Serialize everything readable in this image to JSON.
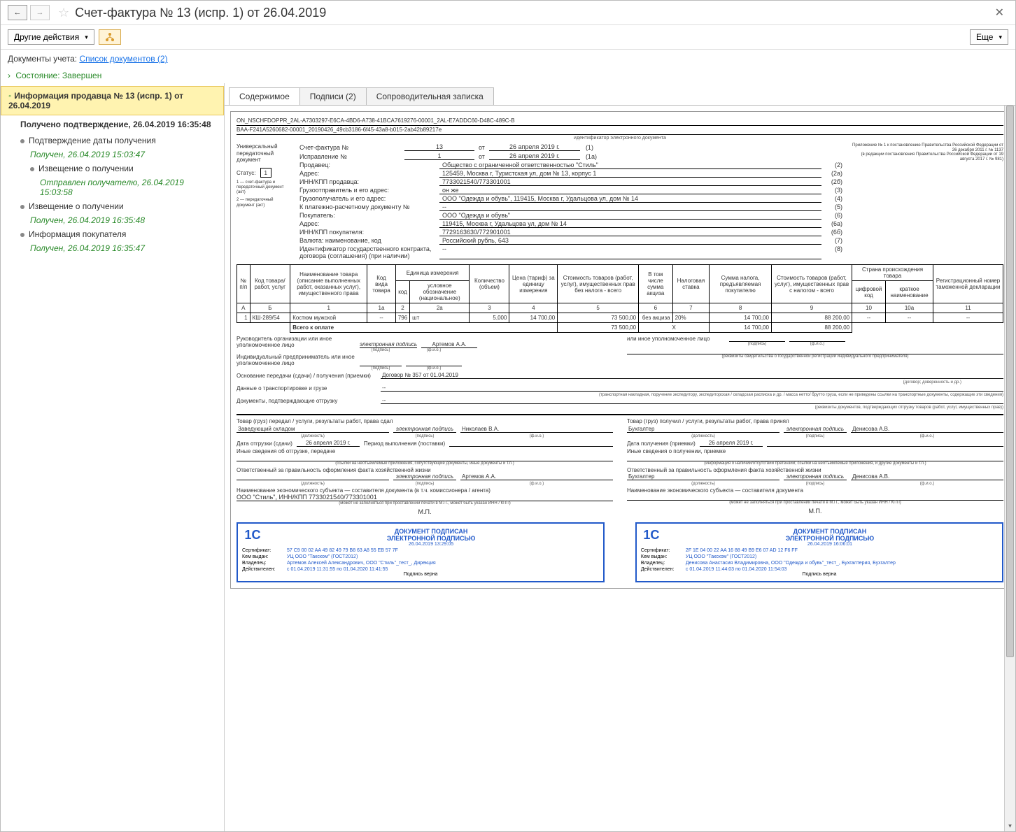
{
  "window": {
    "title": "Счет-фактура № 13 (испр. 1) от 26.04.2019"
  },
  "toolbar": {
    "other_actions": "Другие действия",
    "more": "Еще"
  },
  "docinfo": {
    "label": "Документы учета:",
    "link": "Список документов (2)"
  },
  "state": {
    "label": "Состояние:",
    "value": "Завершен"
  },
  "sidebar": {
    "header": "Информация продавца № 13 (испр. 1) от 26.04.2019",
    "confirm": "Получено подтверждение, 26.04.2019 16:35:48",
    "items": [
      {
        "text": "Подтверждение даты получения",
        "cls": "indent1"
      },
      {
        "text": "Получен, 26.04.2019 15:03:47",
        "cls": "indent2 side-green"
      },
      {
        "text": "Извещение о получении",
        "cls": "indent2"
      },
      {
        "text": "Отправлен получателю, 26.04.2019 15:03:58",
        "cls": "indent3 side-green"
      },
      {
        "text": "Извещение о получении",
        "cls": "indent1"
      },
      {
        "text": "Получен, 26.04.2019 16:35:48",
        "cls": "indent2 side-green"
      },
      {
        "text": "Информация покупателя",
        "cls": "indent1"
      },
      {
        "text": "Получен, 26.04.2019 16:35:47",
        "cls": "indent2 side-green"
      }
    ]
  },
  "tabs": {
    "t1": "Содержимое",
    "t2": "Подписи (2)",
    "t3": "Сопроводительная записка"
  },
  "doc": {
    "file_id1": "ON_NSCHFDOPPR_2AL-A7303297-E6CA-4BD6-A738-41BCA7619276-00001_2AL-E7ADDC60-D48C-489C-B",
    "file_id2": "BAA-F241A5260682-00001_20190426_49cb3186-6f45-43a8-b015-2ab42b89217e",
    "file_id_lbl": "идентификатор электронного документа",
    "univ": "Универсальный передаточный документ",
    "status_lbl": "Статус:",
    "status_val": "1",
    "status_note1": "1 — счет-фактура и передаточный документ (акт)",
    "status_note2": "2 — передаточный документ (акт)",
    "app_line1": "Приложение № 1 к постановлению Правительства Российской Федерации от 26 декабря 2011 г. № 1137",
    "app_line2": "(в редакции постановления Правительства Российской Федерации от 19 августа 2017 г. № 981)",
    "inv_lbl": "Счет-фактура №",
    "inv_num": "13",
    "inv_from": "от",
    "inv_date": "26 апреля 2019 г.",
    "inv_p": "(1)",
    "corr_lbl": "Исправление №",
    "corr_num": "1",
    "corr_date": "26 апреля 2019 г.",
    "corr_p": "(1а)",
    "fields": [
      {
        "lbl": "Продавец:",
        "val": "Общество с ограниченной ответственностью \"Стиль\"",
        "n": "(2)"
      },
      {
        "lbl": "Адрес:",
        "val": "125459, Москва г, Туристская ул, дом № 13, корпус 1",
        "n": "(2а)"
      },
      {
        "lbl": "ИНН/КПП продавца:",
        "val": "7733021540/773301001",
        "n": "(2б)"
      },
      {
        "lbl": "Грузоотправитель и его адрес:",
        "val": "он же",
        "n": "(3)"
      },
      {
        "lbl": "Грузополучатель и его адрес:",
        "val": "ООО \"Одежда и обувь\", 119415, Москва г, Удальцова ул, дом № 14",
        "n": "(4)"
      },
      {
        "lbl": "К платежно-расчетному документу №",
        "val": "--",
        "n": "(5)"
      },
      {
        "lbl": "Покупатель:",
        "val": "ООО \"Одежда и обувь\"",
        "n": "(6)"
      },
      {
        "lbl": "Адрес:",
        "val": "119415, Москва г, Удальцова ул, дом № 14",
        "n": "(6а)"
      },
      {
        "lbl": "ИНН/КПП покупателя:",
        "val": "7729163630/772901001",
        "n": "(6б)"
      },
      {
        "lbl": "Валюта: наименование, код",
        "val": "Российский рубль, 643",
        "n": "(7)"
      },
      {
        "lbl": "Идентификатор государственного контракта, договора (соглашения) (при наличии)",
        "val": "--",
        "n": "(8)"
      }
    ],
    "th": {
      "c0": "№ п/п",
      "cA": "Код товара/ работ, услуг",
      "c1": "Наименование товара (описание выполненных работ, оказанных услуг), имущественного права",
      "c1a": "Код вида товара",
      "c2": "Единица измерения",
      "c2a": "код",
      "c2b": "условное обозначение (национальное)",
      "c3": "Количество (объем)",
      "c4": "Цена (тариф) за единицу измерения",
      "c5": "Стоимость товаров (работ, услуг), имущественных прав без налога - всего",
      "c6": "В том числе сумма акциза",
      "c7": "Налоговая ставка",
      "c8": "Сумма налога, предъявляемая покупателю",
      "c9": "Стоимость товаров (работ, услуг), имущественных прав с налогом - всего",
      "c10": "Страна происхождения товара",
      "c10a": "цифровой код",
      "c10b": "краткое наименование",
      "c11": "Регистрационный номер таможенной декларации"
    },
    "nh": {
      "a": "А",
      "b": "Б",
      "n1": "1",
      "n1a": "1а",
      "n2": "2",
      "n2a": "2а",
      "n3": "3",
      "n4": "4",
      "n5": "5",
      "n6": "6",
      "n7": "7",
      "n8": "8",
      "n9": "9",
      "n10": "10",
      "n10a": "10а",
      "n11": "11"
    },
    "row": {
      "n": "1",
      "code": "КШ-289/54",
      "name": "Костюм мужской",
      "vid": "--",
      "ucode": "796",
      "uname": "шт",
      "qty": "5,000",
      "price": "14 700,00",
      "sum_no_tax": "73 500,00",
      "excise": "без акциза",
      "rate": "20%",
      "tax": "14 700,00",
      "sum_tax": "88 200,00",
      "country_code": "--",
      "country_name": "--",
      "gtd": "--"
    },
    "total": {
      "lbl": "Всего к оплате",
      "sum_no_tax": "73 500,00",
      "x": "Х",
      "tax": "14 700,00",
      "sum_tax": "88 200,00"
    },
    "sig": {
      "org_head": "Руководитель организации или иное уполномоченное лицо",
      "epod": "электронная подпись",
      "podpis": "(подпись)",
      "fio": "(ф.и.о.)",
      "artemov": "Артемов А.А.",
      "auth": "или иное уполномоченное лицо",
      "ip": "Индивидуальный предприниматель или иное уполномоченное лицо",
      "ip_note": "(реквизиты свидетельства о государственной регистрации индивидуального предпринимателя)"
    },
    "transfer": {
      "basis_lbl": "Основание передачи (сдачи) / получения (приемки)",
      "basis_val": "Договор № 357 от 01.04.2019",
      "basis_sub": "(договор; доверенность и др.)",
      "transport_lbl": "Данные о транспортировке и грузе",
      "transport_val": "--",
      "transport_sub": "(транспортная накладная, поручение экспедитору, экспедиторская / складская расписка и др. / масса нетто/ брутто груза, если не приведены ссылки на транспортные документы, содержащие эти сведения)",
      "ship_docs_lbl": "Документы, подтверждающие отгрузку",
      "ship_docs_val": "--",
      "ship_docs_sub": "(реквизиты документов, подтверждающих отгрузку товаров (работ, услуг, имущественных прав))"
    },
    "left_col": {
      "h": "Товар (груз) передал / услуги, результаты работ, права сдал",
      "pos": "Заведующий складом",
      "name": "Николаев В.А.",
      "ship_date_lbl": "Дата отгрузки (сдачи)",
      "ship_date": "26 апреля 2019 г.",
      "period_lbl": "Период выполнения (поставки)",
      "other_lbl": "Иные сведения об отгрузке, передаче",
      "other_sub": "(ссылки на неотъемлемые приложения, сопутствующие документы, иные документы и т.п.)",
      "resp_lbl": "Ответственный за правильность оформления факта хозяйственной жизни",
      "resp_name": "Артемов А.А.",
      "pos_sub": "(должность)",
      "subj_lbl": "Наименование экономического субъекта — составителя документа (в т.ч. комиссионера / агента)",
      "subj_val": "ООО \"Стиль\", ИНН/КПП 7733021540/773301001",
      "subj_sub": "(может не заполняться при проставлении печати в М.П., может быть указан ИНН / КПП)",
      "mp": "М.П."
    },
    "right_col": {
      "h": "Товар (груз) получил / услуги, результаты работ, права принял",
      "pos": "Бухгалтер",
      "name": "Денисова А.В.",
      "recv_date_lbl": "Дата получения (приемки)",
      "recv_date": "26 апреля 2019 г.",
      "other_lbl": "Иные сведения о получении, приемке",
      "other_sub": "(информация о наличии/отсутствии претензии; ссылки на неотъемлемые приложения, и другие документы и т.п.)",
      "resp_lbl": "Ответственный за правильность оформления факта хозяйственной жизни",
      "resp_name": "Денисова А.В.",
      "subj_lbl": "Наименование экономического субъекта — составителя документа",
      "subj_sub": "(может не заполняться при проставлении печати в М.П., может быть указан ИНН / КПП)",
      "mp": "М.П."
    },
    "stamp_l": {
      "title1": "ДОКУМЕНТ ПОДПИСАН",
      "title2": "ЭЛЕКТРОННОЙ ПОДПИСЬЮ",
      "date": "26.04.2019 13:29:05",
      "cert_k": "Сертификат:",
      "cert_v": "57 C9 00 02 AA 49 82 49 79 B8 63 A8 55 EB 57 7F",
      "issued_k": "Кем выдан:",
      "issued_v": "УЦ ООО \"Такском\" (ГОСТ2012)",
      "owner_k": "Владелец:",
      "owner_v": "Артемов Алексей Александрович, ООО \"Стиль\"_тест_, Дирекция",
      "valid_k": "Действителен:",
      "valid_v": "с 01.04.2019 11:31:55 по 01.04.2020 11:41:55",
      "ok": "Подпись верна"
    },
    "stamp_r": {
      "title1": "ДОКУМЕНТ ПОДПИСАН",
      "title2": "ЭЛЕКТРОННОЙ ПОДПИСЬЮ",
      "date": "26.04.2019 16:06:01",
      "cert_k": "Сертификат:",
      "cert_v": "2F 1E 04 00 22 AA 16 88 49 B9 E6 07 AD 12 F6 FF",
      "issued_k": "Кем выдан:",
      "issued_v": "УЦ ООО \"Такском\" (ГОСТ2012)",
      "owner_k": "Владелец:",
      "owner_v": "Денисова Анастасия Владимировна, ООО \"Одежда и обувь\"_тест_, Бухгалтерия, Бухгалтер",
      "valid_k": "Действителен:",
      "valid_v": "с 01.04.2019 11:44:03 по 01.04.2020 11:54:03",
      "ok": "Подпись верна"
    }
  }
}
